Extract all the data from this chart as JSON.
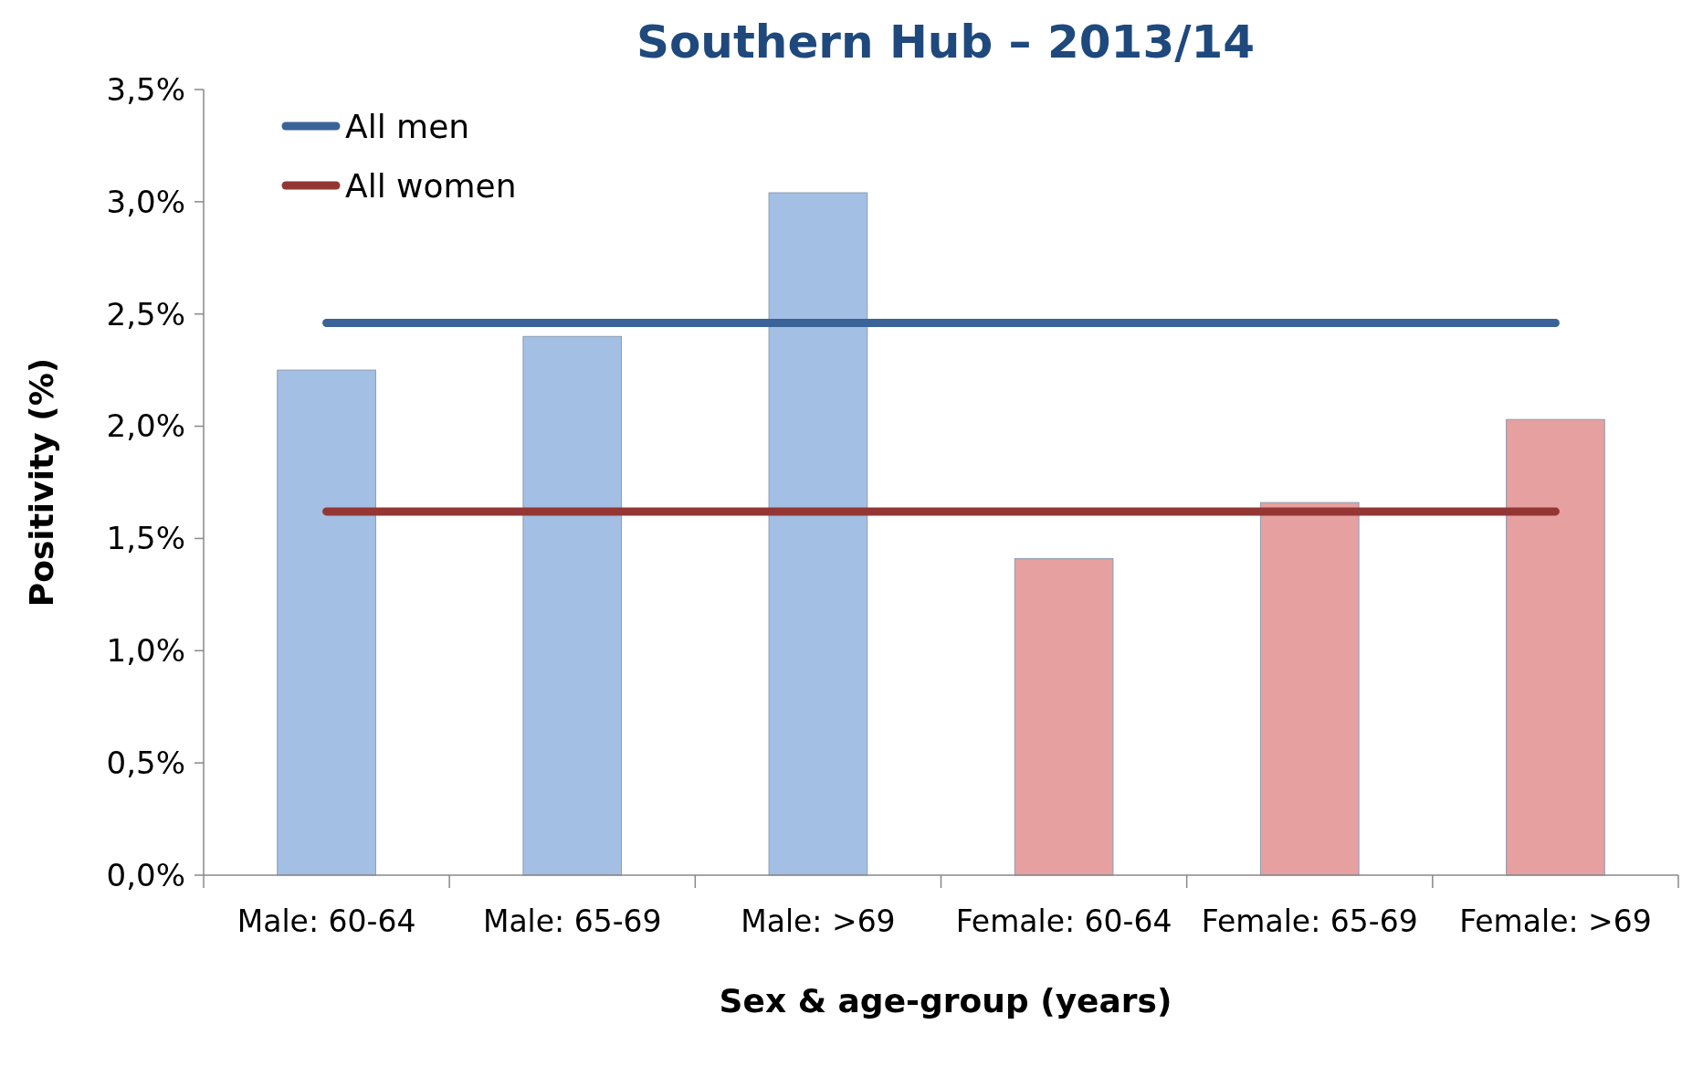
{
  "chart_data": {
    "type": "bar",
    "title": "Southern Hub – 2013/14",
    "xlabel": "Sex & age-group (years)",
    "ylabel": "Positivity (%)",
    "categories": [
      "Male: 60-64",
      "Male: 65-69",
      "Male: >69",
      "Female: 60-64",
      "Female: 65-69",
      "Female: >69"
    ],
    "series": [
      {
        "values": [
          2.25,
          2.4,
          3.04,
          1.41,
          1.66,
          2.03
        ],
        "colors": [
          "#a3bfe4",
          "#a3bfe4",
          "#a3bfe4",
          "#e6a0a0",
          "#e6a0a0",
          "#e6a0a0"
        ]
      },
      {
        "type": "line",
        "name": "All men",
        "color": "#3a6398",
        "values": [
          2.46,
          2.46,
          2.46,
          2.46,
          2.46,
          2.46
        ]
      },
      {
        "type": "line",
        "name": "All women",
        "color": "#943634",
        "values": [
          1.62,
          1.62,
          1.62,
          1.62,
          1.62,
          1.62
        ]
      }
    ],
    "ylim": [
      0,
      3.5
    ],
    "yticks": [
      {
        "value": 0,
        "label": "0,0%"
      },
      {
        "value": 0.5,
        "label": "0,5%"
      },
      {
        "value": 1,
        "label": "1,0%"
      },
      {
        "value": 1.5,
        "label": "1,5%"
      },
      {
        "value": 2,
        "label": "2,0%"
      },
      {
        "value": 2.5,
        "label": "2,5%"
      },
      {
        "value": 3,
        "label": "3,0%"
      },
      {
        "value": 3.5,
        "label": "3,5%"
      }
    ],
    "grid": false,
    "legend": "top left",
    "marker": "none",
    "line_style": "solid"
  }
}
